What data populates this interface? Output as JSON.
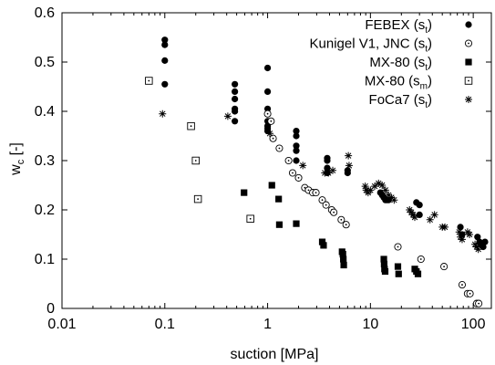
{
  "chart_data": {
    "type": "scatter",
    "xlabel": "suction [MPa]",
    "ylabel": "w",
    "ylabel_sub": "c",
    "ylabel_unit": " [-]",
    "xscale": "log",
    "xlim": [
      0.01,
      150
    ],
    "ylim": [
      0,
      0.6
    ],
    "x_ticks": [
      "0.01",
      "0.1",
      "1",
      "10",
      "100"
    ],
    "y_ticks": [
      "0",
      "0.1",
      "0.2",
      "0.3",
      "0.4",
      "0.5",
      "0.6"
    ],
    "grid": false,
    "legend_position": "top-right",
    "series": [
      {
        "name": "FEBEX (s",
        "name_sub": "t",
        "name_end": ")",
        "marker": "filled-circle",
        "points": [
          [
            0.1,
            0.545
          ],
          [
            0.1,
            0.535
          ],
          [
            0.1,
            0.503
          ],
          [
            0.1,
            0.455
          ],
          [
            0.48,
            0.455
          ],
          [
            0.48,
            0.44
          ],
          [
            0.48,
            0.425
          ],
          [
            0.48,
            0.405
          ],
          [
            0.48,
            0.4
          ],
          [
            0.48,
            0.38
          ],
          [
            1.0,
            0.488
          ],
          [
            1.0,
            0.44
          ],
          [
            1.0,
            0.405
          ],
          [
            1.0,
            0.395
          ],
          [
            1.0,
            0.38
          ],
          [
            1.0,
            0.37
          ],
          [
            1.0,
            0.365
          ],
          [
            1.0,
            0.36
          ],
          [
            1.9,
            0.36
          ],
          [
            1.9,
            0.35
          ],
          [
            1.9,
            0.33
          ],
          [
            1.9,
            0.32
          ],
          [
            1.9,
            0.3
          ],
          [
            3.8,
            0.305
          ],
          [
            3.8,
            0.3
          ],
          [
            3.8,
            0.285
          ],
          [
            3.8,
            0.275
          ],
          [
            6.0,
            0.28
          ],
          [
            6.0,
            0.275
          ],
          [
            12.5,
            0.235
          ],
          [
            13.0,
            0.23
          ],
          [
            13.5,
            0.225
          ],
          [
            14.0,
            0.22
          ],
          [
            14.5,
            0.22
          ],
          [
            15.0,
            0.22
          ],
          [
            28.0,
            0.215
          ],
          [
            30.0,
            0.21
          ],
          [
            30.0,
            0.19
          ],
          [
            75.0,
            0.165
          ],
          [
            78.0,
            0.15
          ],
          [
            110.0,
            0.145
          ],
          [
            115.0,
            0.135
          ],
          [
            120.0,
            0.13
          ],
          [
            125.0,
            0.125
          ],
          [
            130.0,
            0.135
          ]
        ]
      },
      {
        "name": "Kunigel V1, JNC (s",
        "name_sub": "t",
        "name_end": ")",
        "marker": "open-circle-dot",
        "points": [
          [
            1.0,
            0.395
          ],
          [
            1.08,
            0.38
          ],
          [
            1.13,
            0.345
          ],
          [
            1.3,
            0.325
          ],
          [
            1.6,
            0.3
          ],
          [
            1.75,
            0.275
          ],
          [
            2.0,
            0.265
          ],
          [
            2.3,
            0.245
          ],
          [
            2.5,
            0.24
          ],
          [
            2.75,
            0.235
          ],
          [
            2.95,
            0.235
          ],
          [
            3.4,
            0.22
          ],
          [
            3.7,
            0.21
          ],
          [
            4.2,
            0.2
          ],
          [
            4.4,
            0.195
          ],
          [
            5.2,
            0.18
          ],
          [
            5.8,
            0.17
          ],
          [
            18.5,
            0.125
          ],
          [
            31.0,
            0.1
          ],
          [
            52.0,
            0.085
          ],
          [
            78.0,
            0.048
          ],
          [
            88.0,
            0.03
          ],
          [
            93.0,
            0.03
          ],
          [
            108.0,
            0.01
          ],
          [
            113.0,
            0.01
          ]
        ]
      },
      {
        "name": "MX-80 (s",
        "name_sub": "t",
        "name_end": ")",
        "marker": "filled-square",
        "points": [
          [
            0.59,
            0.235
          ],
          [
            1.1,
            0.25
          ],
          [
            1.28,
            0.222
          ],
          [
            1.3,
            0.17
          ],
          [
            1.9,
            0.172
          ],
          [
            3.4,
            0.135
          ],
          [
            3.5,
            0.128
          ],
          [
            5.3,
            0.115
          ],
          [
            5.4,
            0.11
          ],
          [
            5.45,
            0.1
          ],
          [
            5.5,
            0.088
          ],
          [
            13.5,
            0.1
          ],
          [
            13.6,
            0.09
          ],
          [
            13.7,
            0.08
          ],
          [
            13.9,
            0.075
          ],
          [
            18.5,
            0.085
          ],
          [
            18.8,
            0.07
          ],
          [
            27.0,
            0.08
          ],
          [
            28.0,
            0.075
          ],
          [
            29.0,
            0.07
          ]
        ]
      },
      {
        "name": "MX-80 (s",
        "name_sub": "m",
        "name_end": ")",
        "marker": "open-square-dot",
        "points": [
          [
            0.07,
            0.462
          ],
          [
            0.18,
            0.37
          ],
          [
            0.2,
            0.3
          ],
          [
            0.21,
            0.222
          ],
          [
            0.68,
            0.182
          ]
        ]
      },
      {
        "name": "FoCa7 (s",
        "name_sub": "t",
        "name_end": ")",
        "marker": "asterisk",
        "points": [
          [
            0.095,
            0.395
          ],
          [
            0.41,
            0.39
          ],
          [
            1.05,
            0.355
          ],
          [
            2.2,
            0.29
          ],
          [
            3.6,
            0.275
          ],
          [
            3.9,
            0.275
          ],
          [
            4.3,
            0.28
          ],
          [
            6.1,
            0.31
          ],
          [
            6.2,
            0.29
          ],
          [
            8.9,
            0.248
          ],
          [
            9.1,
            0.24
          ],
          [
            9.5,
            0.235
          ],
          [
            10.0,
            0.24
          ],
          [
            11.0,
            0.248
          ],
          [
            12.0,
            0.254
          ],
          [
            13.0,
            0.25
          ],
          [
            14.0,
            0.24
          ],
          [
            15.0,
            0.23
          ],
          [
            16.0,
            0.225
          ],
          [
            17.0,
            0.22
          ],
          [
            24.0,
            0.2
          ],
          [
            25.0,
            0.195
          ],
          [
            26.0,
            0.19
          ],
          [
            27.0,
            0.185
          ],
          [
            38.0,
            0.18
          ],
          [
            42.0,
            0.19
          ],
          [
            50.0,
            0.165
          ],
          [
            53.0,
            0.165
          ],
          [
            73.0,
            0.155
          ],
          [
            75.0,
            0.145
          ],
          [
            78.0,
            0.14
          ],
          [
            88.0,
            0.155
          ],
          [
            92.0,
            0.15
          ],
          [
            104.0,
            0.13
          ],
          [
            108.0,
            0.125
          ],
          [
            112.0,
            0.12
          ],
          [
            118.0,
            0.13
          ]
        ]
      }
    ]
  }
}
